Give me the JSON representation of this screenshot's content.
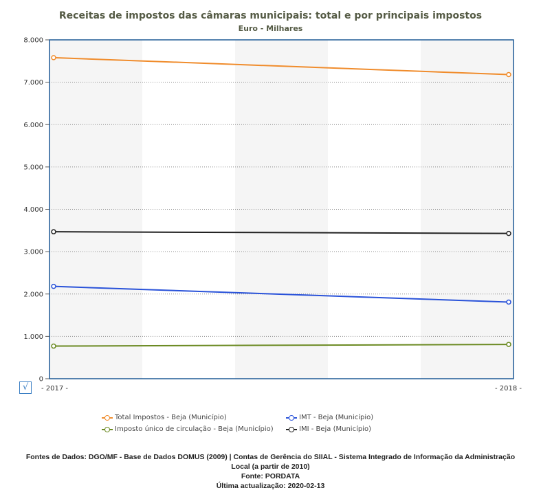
{
  "chart_data": {
    "type": "line",
    "title": "Receitas de impostos das câmaras municipais: total e por principais impostos",
    "subtitle": "Euro - Milhares",
    "categories": [
      "- 2017 -",
      "- 2018 -"
    ],
    "ylim": [
      0,
      8000
    ],
    "yticks": [
      0,
      1000,
      2000,
      3000,
      4000,
      5000,
      6000,
      7000,
      8000
    ],
    "ytick_labels": [
      "0",
      "1.000",
      "2.000",
      "3.000",
      "4.000",
      "5.000",
      "6.000",
      "7.000",
      "8.000"
    ],
    "grid": true,
    "legend_position": "bottom",
    "series": [
      {
        "name": "Total Impostos - Beja (Município)",
        "color": "#f08c2c",
        "values": [
          7580,
          7180
        ]
      },
      {
        "name": "IMT - Beja (Município)",
        "color": "#2952d9",
        "values": [
          2180,
          1810
        ]
      },
      {
        "name": "Imposto único de circulação - Beja (Município)",
        "color": "#6b8a22",
        "values": [
          770,
          810
        ]
      },
      {
        "name": "IMI - Beja (Município)",
        "color": "#222222",
        "values": [
          3470,
          3430
        ]
      }
    ]
  },
  "footer": {
    "line1": "Fontes de Dados: DGO/MF - Base de Dados DOMUS (2009) | Contas de Gerência do SIIAL - Sistema Integrado de Informação da Administração",
    "line2": "Local (a partir de 2010)",
    "line3": "Fonte: PORDATA",
    "line4": "Última actualização: 2020-02-13"
  },
  "checkbox_glyph": "√"
}
